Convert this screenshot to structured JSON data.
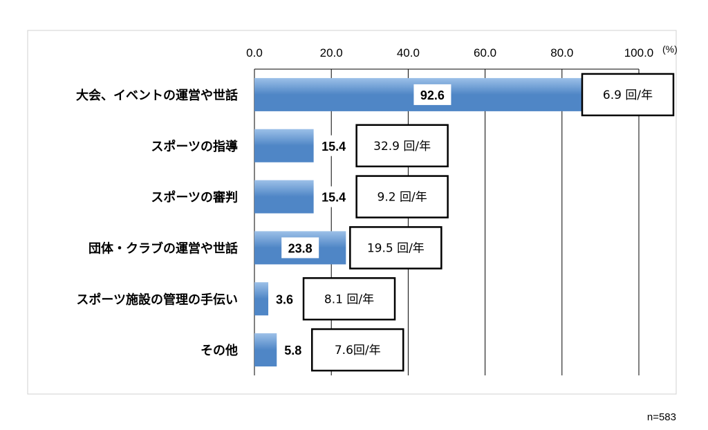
{
  "chart_data": {
    "type": "bar",
    "orientation": "horizontal",
    "categories": [
      "大会、イベントの運営や世話",
      "スポーツの指導",
      "スポーツの審判",
      "団体・クラブの運営や世話",
      "スポーツ施設の管理の手伝い",
      "その他"
    ],
    "values": [
      92.6,
      15.4,
      15.4,
      23.8,
      3.6,
      5.8
    ],
    "value_labels": [
      "92.6",
      "15.4",
      "15.4",
      "23.8",
      "3.6",
      "5.8"
    ],
    "frequency_labels": [
      "6.9 回/年",
      "32.9 回/年",
      "9.2 回/年",
      "19.5 回/年",
      "8.1 回/年",
      "7.6回/年"
    ],
    "xlim": [
      0,
      100
    ],
    "x_ticks": [
      "0.0",
      "20.0",
      "40.0",
      "60.0",
      "80.0",
      "100.0"
    ],
    "x_unit": "(%)",
    "axis_position": "top",
    "grid": true,
    "bar_color": "#4f86c6",
    "bar_color_light": "#9cc0e8",
    "note": "n=583"
  }
}
